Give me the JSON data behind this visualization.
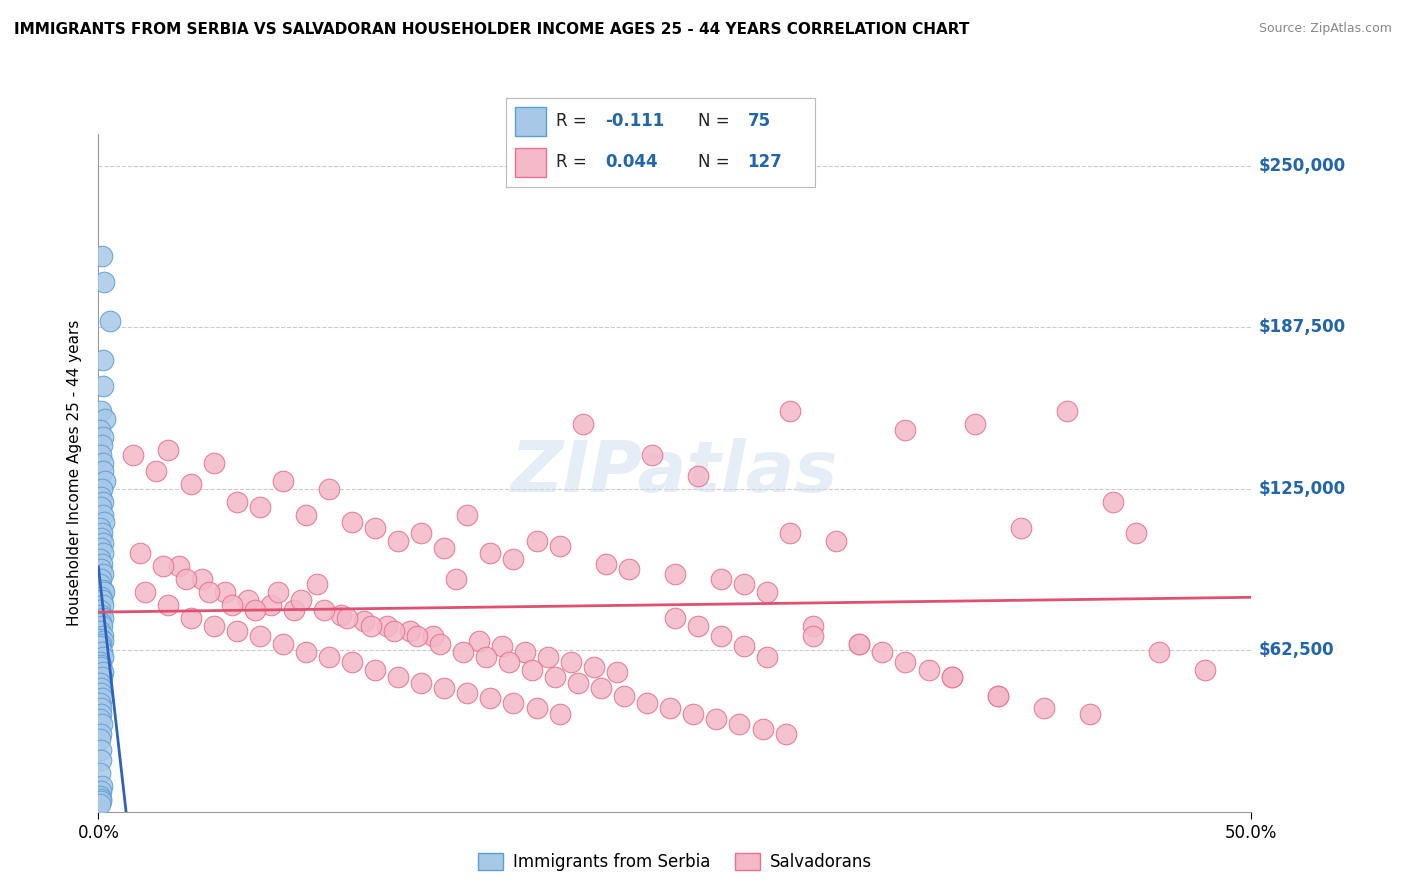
{
  "title": "IMMIGRANTS FROM SERBIA VS SALVADORAN HOUSEHOLDER INCOME AGES 25 - 44 YEARS CORRELATION CHART",
  "source": "Source: ZipAtlas.com",
  "ylabel": "Householder Income Ages 25 - 44 years",
  "xlim": [
    0.0,
    50.0
  ],
  "ylim": [
    0,
    262500
  ],
  "yticks": [
    62500,
    125000,
    187500,
    250000
  ],
  "ytick_labels": [
    "$62,500",
    "$125,000",
    "$187,500",
    "$250,000"
  ],
  "serbia_color": "#a8c8e8",
  "serbia_edge": "#5a9fd4",
  "salvadoran_color": "#f4b8c8",
  "salvadoran_edge": "#e87090",
  "serbia_line_color": "#3060c0",
  "salvadoran_line_color": "#e05070",
  "serbia_R": -0.111,
  "serbia_N": 75,
  "salvadoran_R": 0.044,
  "salvadoran_N": 127,
  "serbia_scatter_x": [
    0.15,
    0.25,
    0.5,
    0.18,
    0.22,
    0.12,
    0.3,
    0.08,
    0.2,
    0.15,
    0.1,
    0.18,
    0.22,
    0.28,
    0.15,
    0.1,
    0.2,
    0.12,
    0.18,
    0.25,
    0.08,
    0.15,
    0.1,
    0.22,
    0.12,
    0.18,
    0.08,
    0.15,
    0.1,
    0.2,
    0.12,
    0.08,
    0.18,
    0.25,
    0.1,
    0.15,
    0.22,
    0.08,
    0.12,
    0.18,
    0.1,
    0.15,
    0.08,
    0.2,
    0.12,
    0.18,
    0.1,
    0.08,
    0.15,
    0.22,
    0.08,
    0.12,
    0.1,
    0.18,
    0.15,
    0.08,
    0.12,
    0.1,
    0.15,
    0.08,
    0.12,
    0.1,
    0.08,
    0.15,
    0.1,
    0.08,
    0.12,
    0.1,
    0.08,
    0.15,
    0.1,
    0.08,
    0.12,
    0.1,
    0.08
  ],
  "serbia_scatter_y": [
    215000,
    205000,
    190000,
    175000,
    165000,
    155000,
    152000,
    148000,
    145000,
    142000,
    138000,
    135000,
    132000,
    128000,
    125000,
    122000,
    120000,
    118000,
    115000,
    112000,
    110000,
    108000,
    106000,
    104000,
    102000,
    100000,
    98000,
    96000,
    94000,
    92000,
    90000,
    88000,
    86000,
    85000,
    83000,
    82000,
    80000,
    78000,
    76000,
    75000,
    73000,
    72000,
    70000,
    68000,
    67000,
    66000,
    65000,
    64000,
    62000,
    60000,
    58000,
    57000,
    56000,
    54000,
    52000,
    50000,
    48000,
    46000,
    44000,
    42000,
    40000,
    38000,
    36000,
    34000,
    30000,
    28000,
    24000,
    20000,
    15000,
    10000,
    8000,
    6000,
    5000,
    4000,
    3000
  ],
  "salvadoran_scatter_x": [
    1.5,
    2.5,
    3.0,
    4.0,
    5.0,
    6.0,
    7.0,
    8.0,
    9.0,
    10.0,
    11.0,
    12.0,
    13.0,
    14.0,
    15.0,
    16.0,
    17.0,
    18.0,
    19.0,
    20.0,
    21.0,
    22.0,
    23.0,
    24.0,
    25.0,
    26.0,
    27.0,
    28.0,
    29.0,
    30.0,
    3.5,
    4.5,
    5.5,
    6.5,
    7.5,
    8.5,
    9.5,
    10.5,
    11.5,
    12.5,
    13.5,
    14.5,
    15.5,
    16.5,
    17.5,
    18.5,
    19.5,
    20.5,
    21.5,
    22.5,
    2.0,
    3.0,
    4.0,
    5.0,
    6.0,
    7.0,
    8.0,
    9.0,
    10.0,
    11.0,
    12.0,
    13.0,
    14.0,
    15.0,
    16.0,
    17.0,
    18.0,
    19.0,
    20.0,
    30.0,
    32.0,
    35.0,
    38.0,
    40.0,
    42.0,
    44.0,
    45.0,
    46.0,
    48.0,
    25.0,
    26.0,
    27.0,
    28.0,
    29.0,
    31.0,
    33.0,
    34.0,
    36.0,
    37.0,
    39.0,
    41.0,
    43.0,
    1.8,
    2.8,
    3.8,
    4.8,
    5.8,
    6.8,
    7.8,
    8.8,
    9.8,
    10.8,
    11.8,
    12.8,
    13.8,
    14.8,
    15.8,
    16.8,
    17.8,
    18.8,
    19.8,
    20.8,
    21.8,
    22.8,
    23.8,
    24.8,
    25.8,
    26.8,
    27.8,
    28.8,
    29.8,
    31.0,
    33.0,
    35.0,
    37.0,
    39.0
  ],
  "salvadoran_scatter_y": [
    138000,
    132000,
    140000,
    127000,
    135000,
    120000,
    118000,
    128000,
    115000,
    125000,
    112000,
    110000,
    105000,
    108000,
    102000,
    115000,
    100000,
    98000,
    105000,
    103000,
    150000,
    96000,
    94000,
    138000,
    92000,
    130000,
    90000,
    88000,
    85000,
    108000,
    95000,
    90000,
    85000,
    82000,
    80000,
    78000,
    88000,
    76000,
    74000,
    72000,
    70000,
    68000,
    90000,
    66000,
    64000,
    62000,
    60000,
    58000,
    56000,
    54000,
    85000,
    80000,
    75000,
    72000,
    70000,
    68000,
    65000,
    62000,
    60000,
    58000,
    55000,
    52000,
    50000,
    48000,
    46000,
    44000,
    42000,
    40000,
    38000,
    155000,
    105000,
    148000,
    150000,
    110000,
    155000,
    120000,
    108000,
    62000,
    55000,
    75000,
    72000,
    68000,
    64000,
    60000,
    72000,
    65000,
    62000,
    55000,
    52000,
    45000,
    40000,
    38000,
    100000,
    95000,
    90000,
    85000,
    80000,
    78000,
    85000,
    82000,
    78000,
    75000,
    72000,
    70000,
    68000,
    65000,
    62000,
    60000,
    58000,
    55000,
    52000,
    50000,
    48000,
    45000,
    42000,
    40000,
    38000,
    36000,
    34000,
    32000,
    30000,
    68000,
    65000,
    58000,
    52000,
    45000
  ]
}
